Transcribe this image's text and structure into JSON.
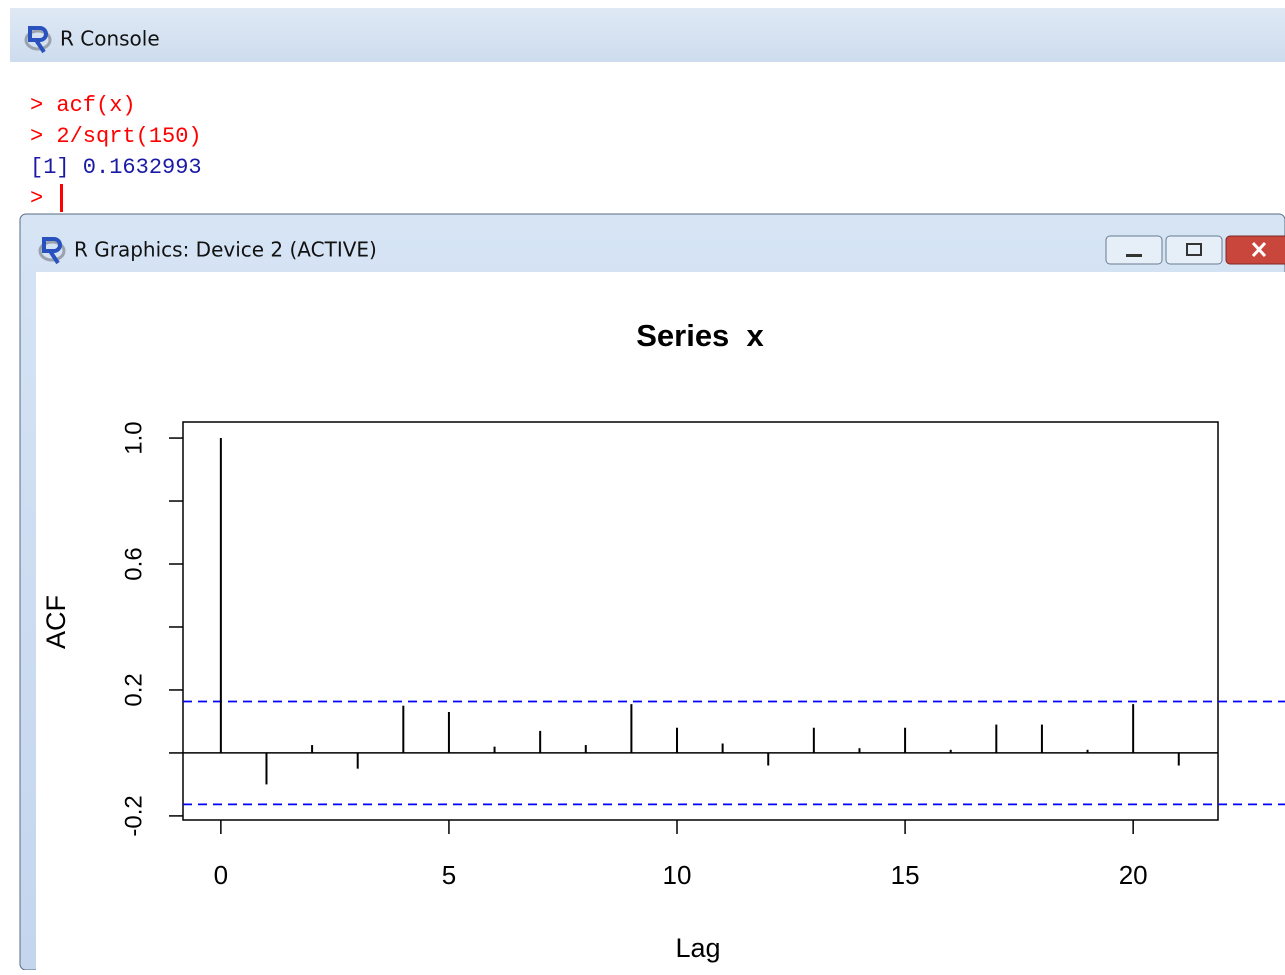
{
  "console": {
    "title": "R Console",
    "lines": [
      "> acf(x)",
      "> 2/sqrt(150)",
      "[1] 0.1632993",
      ">"
    ]
  },
  "graphics_window": {
    "title": "R Graphics: Device 2 (ACTIVE)"
  },
  "chart_data": {
    "type": "stem",
    "title": "Series  x",
    "x_label": "Lag",
    "y_label": "ACF",
    "x": [
      0,
      1,
      2,
      3,
      4,
      5,
      6,
      7,
      8,
      9,
      10,
      11,
      12,
      13,
      14,
      15,
      16,
      17,
      18,
      19,
      20,
      21
    ],
    "values": [
      1.0,
      -0.1,
      0.025,
      -0.05,
      0.15,
      0.13,
      0.02,
      0.07,
      0.025,
      0.155,
      0.08,
      0.03,
      -0.04,
      0.08,
      0.015,
      0.08,
      0.01,
      0.09,
      0.09,
      0.01,
      0.155,
      -0.04
    ],
    "color": "#000000",
    "xlim": [
      -0.83,
      21.86
    ],
    "ylim": [
      -0.213,
      1.051
    ],
    "xticks": [
      0,
      5,
      10,
      15,
      20
    ],
    "yticks": [
      {
        "value": -0.2,
        "label": "-0.2"
      },
      {
        "value": 0,
        "label": null
      },
      {
        "value": 0.2,
        "label": "0.2"
      },
      {
        "value": 0.4,
        "label": null
      },
      {
        "value": 0.6,
        "label": "0.6"
      },
      {
        "value": 0.8,
        "label": null
      },
      {
        "value": 1.0,
        "label": "1.0"
      }
    ],
    "hlines": [
      0.1633,
      -0.1633
    ],
    "hline_color": "#0000ff"
  }
}
